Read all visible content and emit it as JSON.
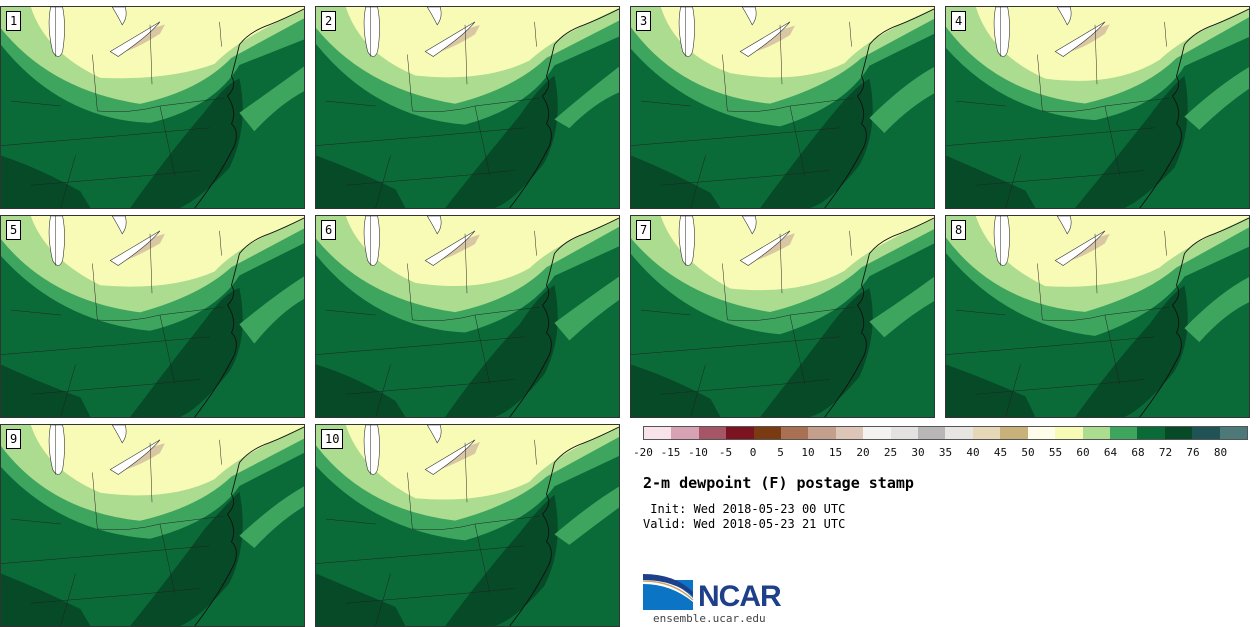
{
  "figure": {
    "title": "2-m dewpoint (F) postage stamp",
    "init": " Init: Wed 2018-05-23 00 UTC",
    "valid": "Valid: Wed 2018-05-23 21 UTC"
  },
  "panels": [
    "1",
    "2",
    "3",
    "4",
    "5",
    "6",
    "7",
    "8",
    "9",
    "10"
  ],
  "colorbar": {
    "tick_labels": [
      "-20",
      "-15",
      "-10",
      "-5",
      "0",
      "5",
      "10",
      "15",
      "20",
      "25",
      "30",
      "35",
      "40",
      "45",
      "50",
      "55",
      "60",
      "64",
      "68",
      "72",
      "76",
      "80"
    ],
    "colors": [
      "#f7e3e9",
      "#d7a3b4",
      "#a55565",
      "#7c1320",
      "#7a3b12",
      "#a97054",
      "#c4a08c",
      "#ddc5b8",
      "#f4f1f1",
      "#e5e1e1",
      "#b9b6b7",
      "#e6e5e2",
      "#e6d7b7",
      "#c9b17a",
      "#fffde9",
      "#f8fbb5",
      "#acdc8f",
      "#3ea55e",
      "#0a6b38",
      "#064a27",
      "#1f5355",
      "#4e7979"
    ]
  },
  "map_colors": {
    "c50": "#fffde9",
    "c55": "#f8fbb5",
    "c60": "#acdc8f",
    "c64": "#3ea55e",
    "c68": "#0a6b38",
    "c72": "#064a27",
    "land_tan": "#d9c6a2",
    "lake": "#ffffff"
  },
  "logo": {
    "name": "NCAR",
    "url": "ensemble.ucar.edu"
  }
}
